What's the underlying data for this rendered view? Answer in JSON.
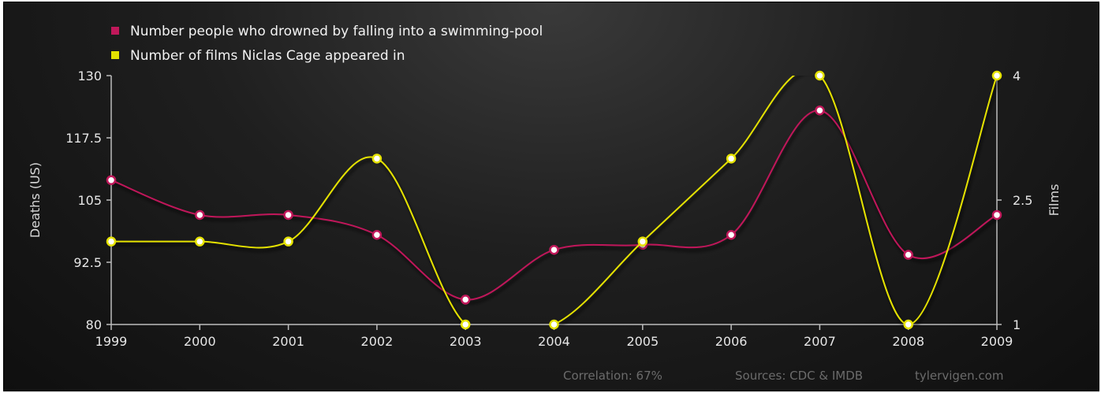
{
  "chart_data": {
    "type": "line",
    "categories": [
      "1999",
      "2000",
      "2001",
      "2002",
      "2003",
      "2004",
      "2005",
      "2006",
      "2007",
      "2008",
      "2009"
    ],
    "series": [
      {
        "name": "Number people who drowned by falling into a swimming-pool",
        "axis": "left",
        "color": "#c0185a",
        "values": [
          109,
          102,
          102,
          98,
          85,
          95,
          96,
          98,
          123,
          94,
          102
        ]
      },
      {
        "name": "Number of films Niclas Cage appeared in",
        "axis": "right",
        "color": "#e5e200",
        "values": [
          2,
          2,
          2,
          3,
          1,
          1,
          2,
          3,
          4,
          1,
          4
        ]
      }
    ],
    "ylabel": "Deaths (US)",
    "y2label": "Films",
    "ylim": [
      80,
      130
    ],
    "yticks": [
      "80",
      "92.5",
      "105",
      "117.5",
      "130"
    ],
    "y2lim": [
      1,
      4
    ],
    "y2ticks": [
      "1",
      "2.5",
      "4"
    ],
    "legend_position": "top-left",
    "grid": false
  },
  "footer": {
    "correlation": "Correlation: 67%",
    "sources": "Sources: CDC & IMDB",
    "site": "tylervigen.com"
  }
}
